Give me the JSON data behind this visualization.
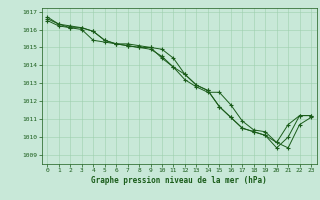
{
  "title": "Graphe pression niveau de la mer (hPa)",
  "background_color": "#c8e8d8",
  "grid_color": "#9ecfae",
  "line_color": "#1a5c1a",
  "xlim": [
    -0.5,
    23.5
  ],
  "ylim": [
    1008.5,
    1017.2
  ],
  "yticks": [
    1009,
    1010,
    1011,
    1012,
    1013,
    1014,
    1015,
    1016,
    1017
  ],
  "xticks": [
    0,
    1,
    2,
    3,
    4,
    5,
    6,
    7,
    8,
    9,
    10,
    11,
    12,
    13,
    14,
    15,
    16,
    17,
    18,
    19,
    20,
    21,
    22,
    23
  ],
  "series": [
    [
      1016.6,
      1016.3,
      1016.1,
      1016.1,
      1015.9,
      1015.4,
      1015.2,
      1015.1,
      1015.0,
      1015.0,
      1014.9,
      1014.4,
      1013.5,
      1012.9,
      1012.6,
      1011.7,
      1011.1,
      1010.5,
      1010.3,
      1010.1,
      1009.4,
      1010.0,
      1011.2,
      1011.2
    ],
    [
      1016.5,
      1016.2,
      1016.1,
      1016.0,
      1015.4,
      1015.3,
      1015.2,
      1015.2,
      1015.1,
      1015.0,
      1014.4,
      1013.9,
      1013.2,
      1012.8,
      1012.5,
      1012.5,
      1011.8,
      1010.9,
      1010.4,
      1010.3,
      1009.7,
      1009.4,
      1010.7,
      1011.1
    ],
    [
      1016.7,
      1016.3,
      1016.2,
      1016.1,
      1015.9,
      1015.4,
      1015.2,
      1015.1,
      1015.0,
      1014.9,
      1014.5,
      1013.9,
      1013.5,
      1012.9,
      1012.6,
      1011.7,
      1011.1,
      1010.5,
      1010.3,
      1010.1,
      1009.7,
      1010.7,
      1011.2,
      1011.2
    ]
  ]
}
